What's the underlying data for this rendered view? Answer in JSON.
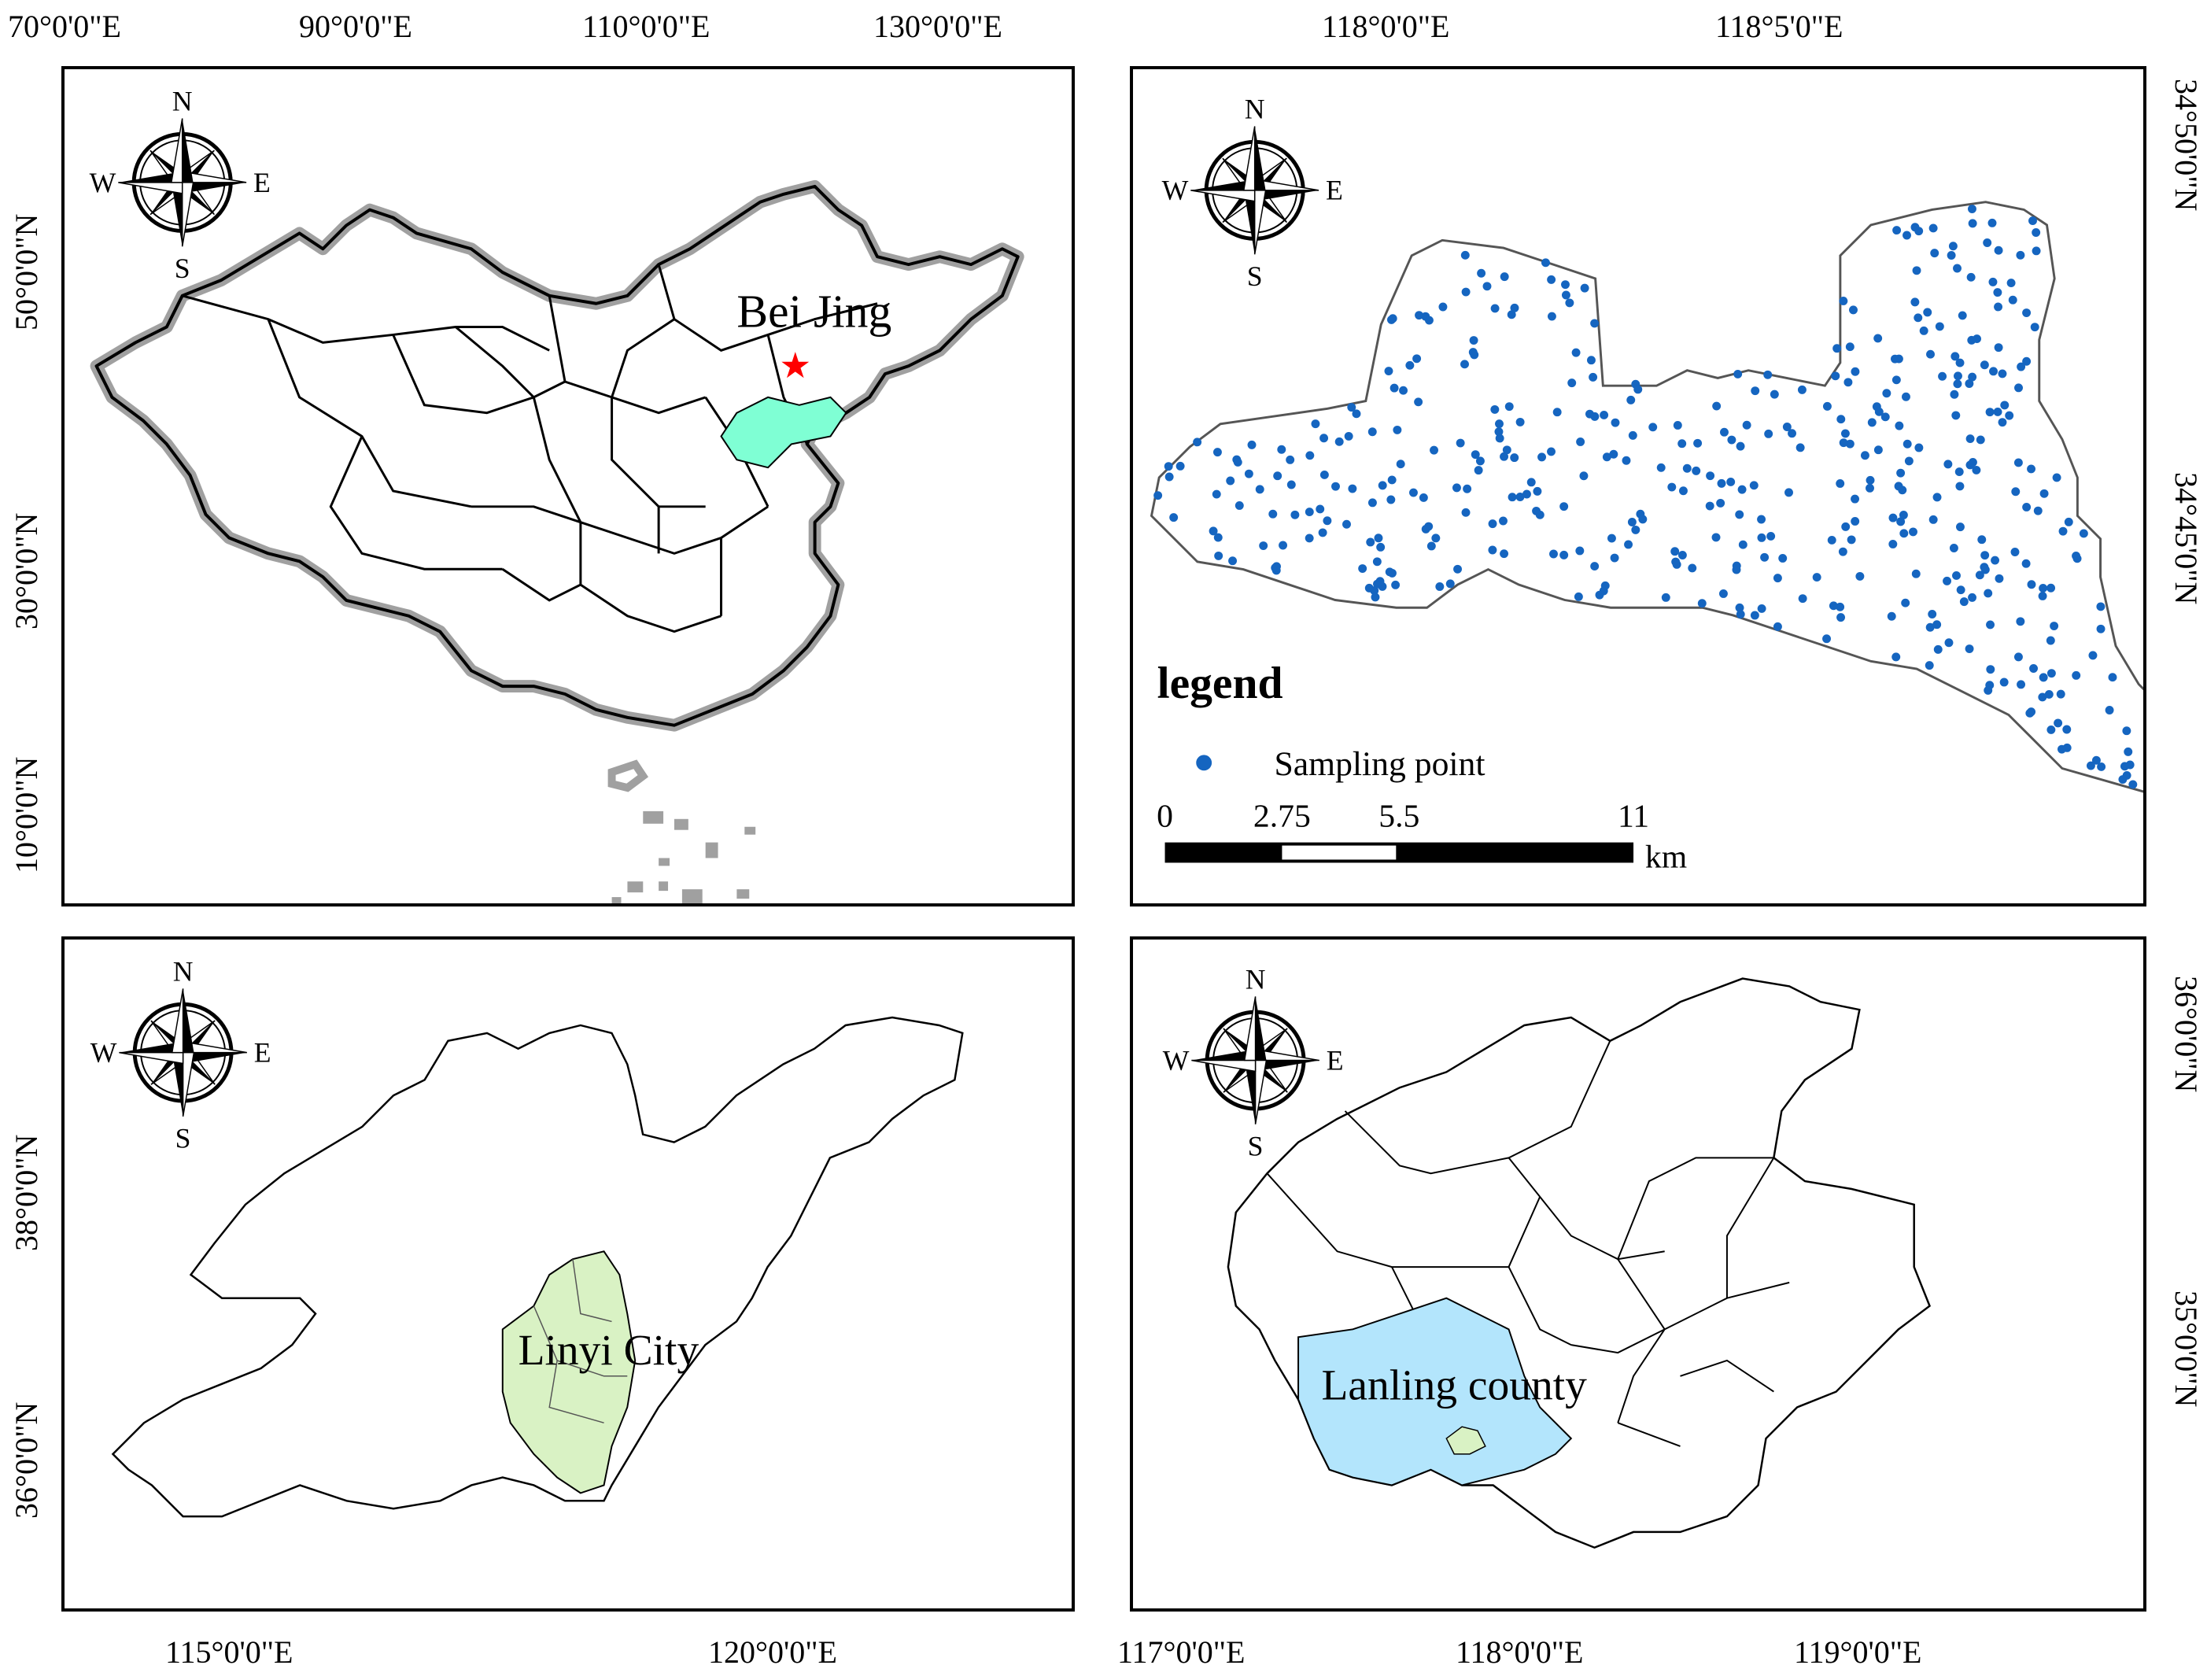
{
  "panels": {
    "china": {
      "top_ticks": [
        "70°0'0\"E",
        "90°0'0\"E",
        "110°0'0\"E",
        "130°0'0\"E"
      ],
      "left_ticks": [
        "50°0'0\"N",
        "30°0'0\"N",
        "10°0'0\"N"
      ],
      "label": "Bei Jing",
      "colors": {
        "boundary": "#a0a0a0",
        "highlight": "#7fffd4",
        "star": "#ff0000"
      }
    },
    "sampling": {
      "top_ticks": [
        "118°0'0\"E",
        "118°5'0\"E"
      ],
      "right_ticks": [
        "34°50'0\"N",
        "34°45'0\"N"
      ],
      "legend_title": "legend",
      "legend_item": "Sampling point",
      "point_color": "#1565c0",
      "scale": {
        "ticks": [
          "0",
          "2.75",
          "5.5",
          "11"
        ],
        "unit": "km"
      }
    },
    "shandong": {
      "left_ticks": [
        "38°0'0\"N",
        "36°0'0\"N"
      ],
      "bottom_ticks": [
        "115°0'0\"E",
        "120°0'0\"E"
      ],
      "label": "Linyi City",
      "highlight_color": "#d9f2c4"
    },
    "linyi": {
      "right_ticks": [
        "36°0'0\"N",
        "35°0'0\"N"
      ],
      "bottom_ticks": [
        "117°0'0\"E",
        "118°0'0\"E",
        "119°0'0\"E"
      ],
      "label": "Lanling county",
      "highlight_color": "#b3e5fc"
    }
  },
  "compass": {
    "n": "N",
    "s": "S",
    "e": "E",
    "w": "W"
  }
}
